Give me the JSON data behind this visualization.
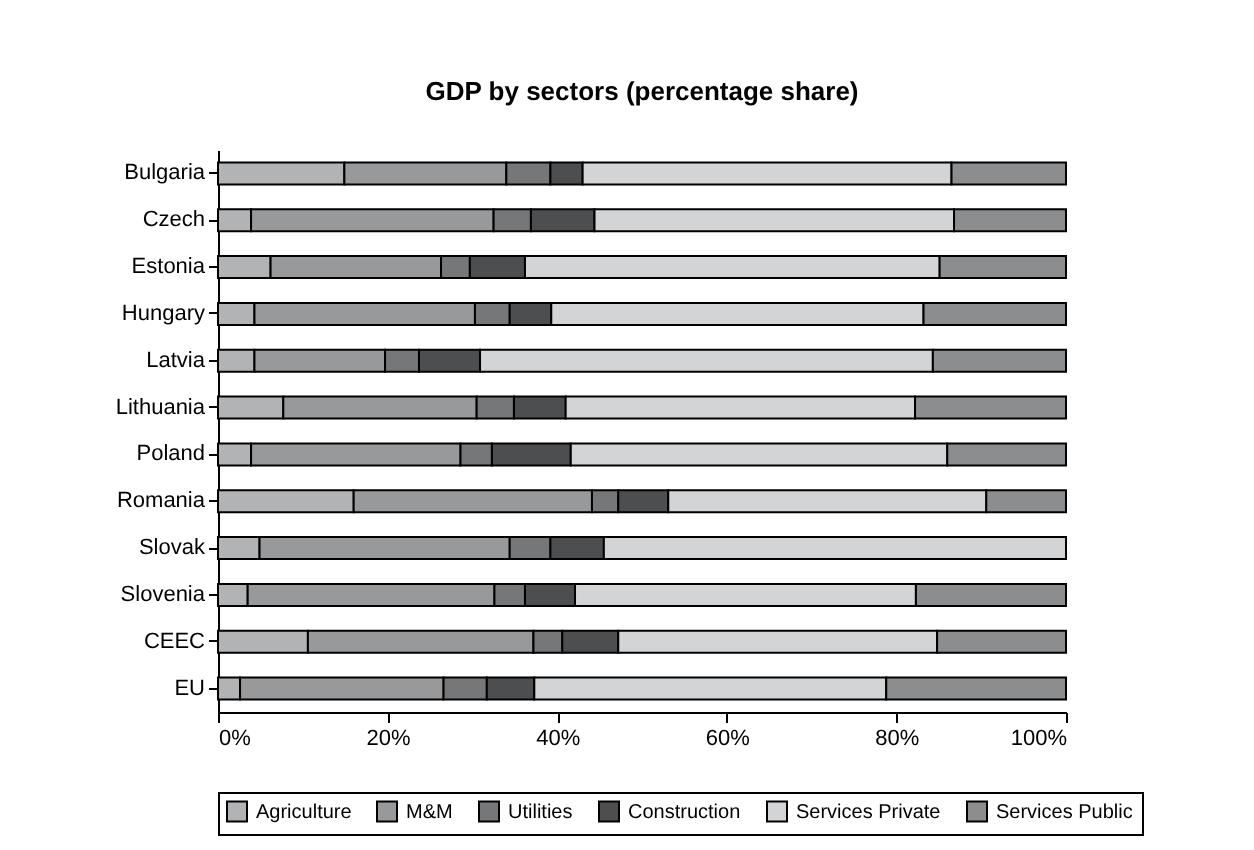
{
  "chart_data": {
    "type": "bar",
    "orientation": "horizontal",
    "stacked": true,
    "title": "GDP by sectors (percentage share)",
    "categories": [
      "Bulgaria",
      "Czech",
      "Estonia",
      "Hungary",
      "Latvia",
      "Lithuania",
      "Poland",
      "Romania",
      "Slovak",
      "Slovenia",
      "CEEC",
      "EU"
    ],
    "series": [
      {
        "name": "Agriculture",
        "color": "#b2b3b5",
        "values": [
          14.9,
          3.9,
          6.2,
          4.3,
          4.3,
          7.7,
          3.9,
          16.0,
          4.9,
          3.5,
          10.6,
          2.6
        ]
      },
      {
        "name": "M&M",
        "color": "#98999b",
        "values": [
          19.1,
          28.6,
          20.1,
          26.0,
          15.4,
          22.8,
          24.7,
          28.1,
          29.5,
          29.1,
          26.6,
          24.0
        ]
      },
      {
        "name": "Utilities",
        "color": "#767779",
        "values": [
          5.2,
          4.4,
          3.4,
          4.1,
          4.0,
          4.4,
          3.7,
          3.1,
          4.8,
          3.6,
          3.4,
          5.1
        ]
      },
      {
        "name": "Construction",
        "color": "#4d4e50",
        "values": [
          3.8,
          7.5,
          6.5,
          4.9,
          7.2,
          6.1,
          9.3,
          5.9,
          6.3,
          5.9,
          6.6,
          5.6
        ]
      },
      {
        "name": "Services Private",
        "color": "#d3d4d6",
        "values": [
          43.5,
          42.4,
          48.9,
          43.9,
          53.4,
          41.2,
          44.4,
          37.5,
          54.5,
          40.2,
          37.6,
          41.5
        ]
      },
      {
        "name": "Services Public",
        "color": "#8c8d8f",
        "values": [
          13.5,
          13.2,
          14.9,
          16.8,
          15.7,
          17.8,
          14.0,
          9.4,
          null,
          17.7,
          15.2,
          21.2
        ]
      }
    ],
    "xlim": [
      0,
      100
    ],
    "xticks": [
      {
        "value": 0,
        "label": "0%"
      },
      {
        "value": 20,
        "label": "20%"
      },
      {
        "value": 40,
        "label": "40%"
      },
      {
        "value": 60,
        "label": "60%"
      },
      {
        "value": 80,
        "label": "80%"
      },
      {
        "value": 100,
        "label": "100%"
      }
    ],
    "grid": false,
    "legend": "bottom"
  }
}
